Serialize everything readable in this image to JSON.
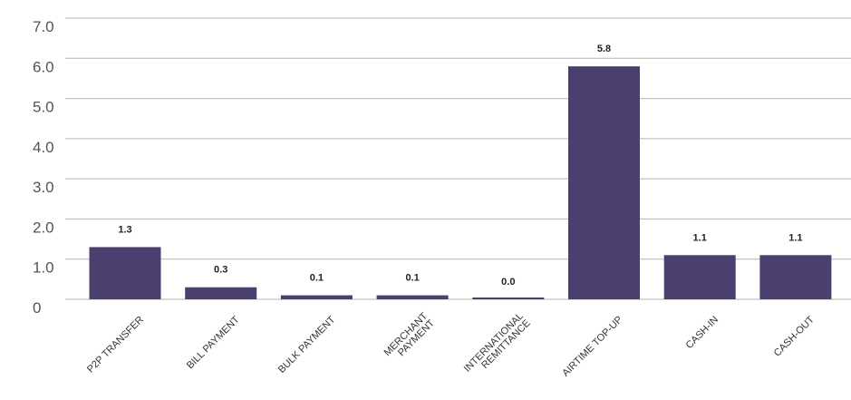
{
  "chart_data": {
    "type": "bar",
    "title": "",
    "xlabel": "",
    "ylabel": "",
    "ylim": [
      0,
      7
    ],
    "yticks": [
      "0",
      "1.0",
      "2.0",
      "3.0",
      "4.0",
      "5.0",
      "6.0",
      "7.0"
    ],
    "grid": true,
    "legend": "none",
    "categories": [
      [
        "P2P TRANSFER"
      ],
      [
        "BILL PAYMENT"
      ],
      [
        "BULK PAYMENT"
      ],
      [
        "MERCHANT",
        "PAYMENT"
      ],
      [
        "INTERNATIONAL",
        "REMITTANCE"
      ],
      [
        "AIRTIME TOP-UP"
      ],
      [
        "CASH-IN"
      ],
      [
        "CASH-OUT"
      ]
    ],
    "values": [
      1.3,
      0.3,
      0.1,
      0.1,
      0.0,
      5.8,
      1.1,
      1.1
    ],
    "value_labels": [
      "1.3",
      "0.3",
      "0.1",
      "0.1",
      "0.0",
      "5.8",
      "1.1",
      "1.1"
    ],
    "bar_color": "#4a3f6e",
    "grid_color": "#b5b5b5"
  }
}
